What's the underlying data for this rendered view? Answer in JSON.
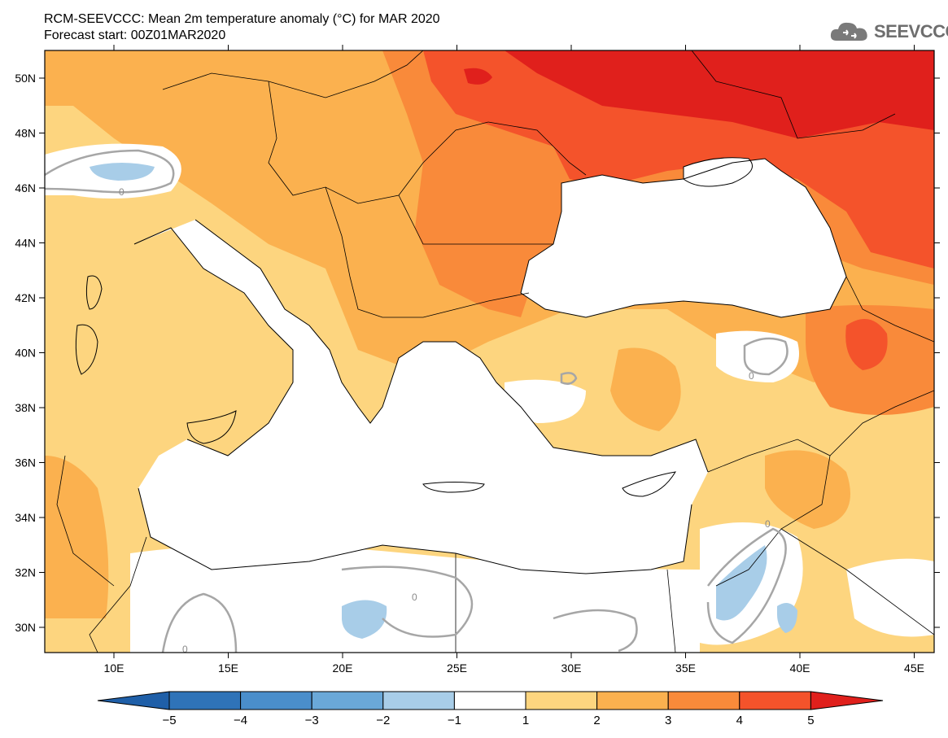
{
  "title": {
    "line1": "RCM-SEEVCCC: Mean 2m temperature anomaly (°C) for MAR 2020",
    "line2": "Forecast start: 00Z01MAR2020"
  },
  "logo": {
    "text": "SEEVCCC",
    "icon": "cloud-icon"
  },
  "map": {
    "lat_labels": [
      "50N",
      "48N",
      "46N",
      "44N",
      "42N",
      "40N",
      "38N",
      "36N",
      "34N",
      "32N",
      "30N"
    ],
    "lon_labels": [
      "10E",
      "15E",
      "20E",
      "25E",
      "30E",
      "35E",
      "40E",
      "45E"
    ],
    "contour_label": "0"
  },
  "colorbar": {
    "ticks": [
      "−5",
      "−4",
      "−3",
      "−2",
      "−1",
      "1",
      "2",
      "3",
      "4",
      "5"
    ],
    "colors": [
      "#1f5fa8",
      "#2f73b8",
      "#4a8ecb",
      "#6aa8d8",
      "#a8cde8",
      "#ffffff",
      "#fdd57f",
      "#fbb14f",
      "#f98a3a",
      "#f4532b",
      "#e0201c"
    ]
  }
}
